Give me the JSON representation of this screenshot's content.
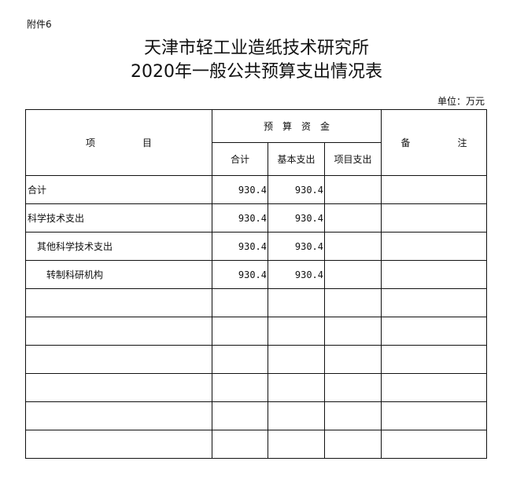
{
  "attachment": "附件6",
  "title_line1": "天津市轻工业造纸技术研究所",
  "title_line2": "2020年一般公共预算支出情况表",
  "unit": "单位：万元",
  "headers": {
    "item": "项　　　　　目",
    "budget": "预　算　资　金",
    "remark": "备　　　　　注",
    "total": "合计",
    "basic": "基本支出",
    "project": "项目支出"
  },
  "rows": [
    {
      "item": "合计",
      "total": "930.4",
      "basic": "930.4",
      "project": "",
      "remark": ""
    },
    {
      "item": "科学技术支出",
      "total": "930.4",
      "basic": "930.4",
      "project": "",
      "remark": ""
    },
    {
      "item": "其他科学技术支出",
      "total": "930.4",
      "basic": "930.4",
      "project": "",
      "remark": ""
    },
    {
      "item": "转制科研机构",
      "total": "930.4",
      "basic": "930.4",
      "project": "",
      "remark": ""
    },
    {
      "item": "",
      "total": "",
      "basic": "",
      "project": "",
      "remark": ""
    },
    {
      "item": "",
      "total": "",
      "basic": "",
      "project": "",
      "remark": ""
    },
    {
      "item": "",
      "total": "",
      "basic": "",
      "project": "",
      "remark": ""
    },
    {
      "item": "",
      "total": "",
      "basic": "",
      "project": "",
      "remark": ""
    },
    {
      "item": "",
      "total": "",
      "basic": "",
      "project": "",
      "remark": ""
    },
    {
      "item": "",
      "total": "",
      "basic": "",
      "project": "",
      "remark": ""
    }
  ]
}
